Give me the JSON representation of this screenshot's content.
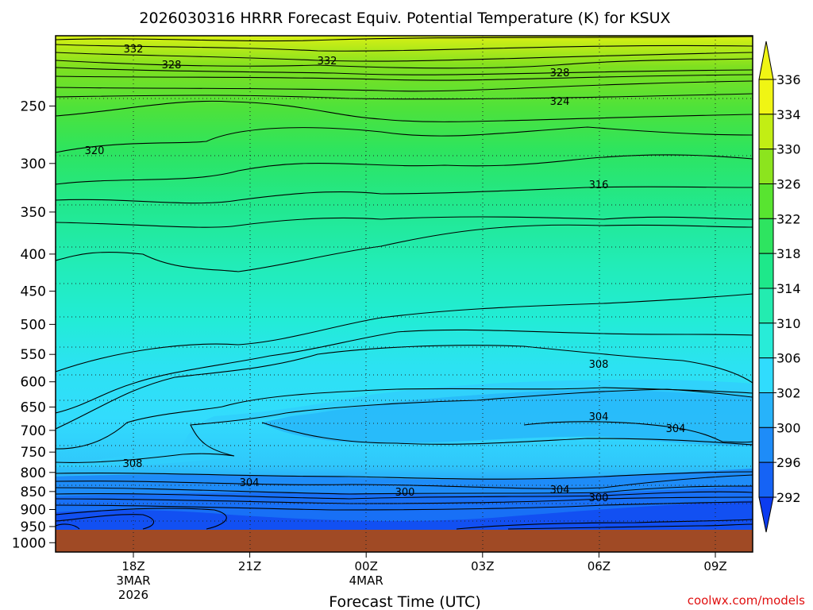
{
  "title": "2026030316 HRRR Forecast Equiv. Potential Temperature (K) for KSUX",
  "xlabel": "Forecast Time (UTC)",
  "credit": "coolwx.com/models",
  "chart_data": {
    "type": "heatmap",
    "title": "2026030316 HRRR Forecast Equiv. Potential Temperature (K) for KSUX",
    "xlabel": "Forecast Time (UTC)",
    "ylabel": "",
    "y_scale": "log-pressure",
    "y_ticks": [
      250,
      300,
      350,
      400,
      450,
      500,
      550,
      600,
      650,
      700,
      750,
      800,
      850,
      900,
      950,
      1000
    ],
    "ylim": [
      200,
      1030
    ],
    "x_ticks": [
      {
        "label": "18Z",
        "sub": [
          "3MAR",
          "2026"
        ]
      },
      {
        "label": "21Z",
        "sub": []
      },
      {
        "label": "00Z",
        "sub": [
          "4MAR"
        ]
      },
      {
        "label": "03Z",
        "sub": []
      },
      {
        "label": "06Z",
        "sub": []
      },
      {
        "label": "09Z",
        "sub": []
      }
    ],
    "colorbar": {
      "levels": [
        292,
        296,
        300,
        302,
        306,
        310,
        314,
        318,
        322,
        326,
        330,
        334,
        336
      ],
      "colors": [
        "#0c3cf0",
        "#1563f5",
        "#1e8cf8",
        "#27b3fa",
        "#30dcfd",
        "#28ecd8",
        "#23ecb0",
        "#1ee88a",
        "#2ee460",
        "#58e430",
        "#8ce41e",
        "#c2ee14",
        "#f0f514"
      ],
      "extend": "both"
    },
    "contour_labels": [
      {
        "value": "332"
      },
      {
        "value": "328"
      },
      {
        "value": "332"
      },
      {
        "value": "328"
      },
      {
        "value": "324"
      },
      {
        "value": "320"
      },
      {
        "value": "316"
      },
      {
        "value": "308"
      },
      {
        "value": "308"
      },
      {
        "value": "304"
      },
      {
        "value": "304"
      },
      {
        "value": "304"
      },
      {
        "value": "300"
      },
      {
        "value": "304"
      },
      {
        "value": "300"
      }
    ],
    "ground": "below ~970 hPa",
    "grid": true
  }
}
